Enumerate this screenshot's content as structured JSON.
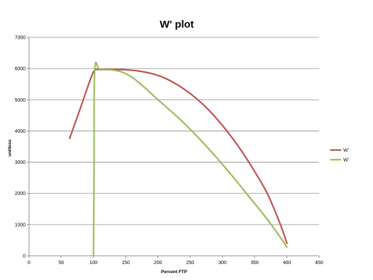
{
  "chart_data": {
    "type": "line",
    "title": "W' plot",
    "xlabel": "Percent FTP",
    "ylabel": "unitless",
    "xlim": [
      0,
      450
    ],
    "ylim": [
      0,
      7000
    ],
    "x_ticks": [
      0,
      50,
      100,
      150,
      200,
      250,
      300,
      350,
      400,
      450
    ],
    "y_ticks": [
      0,
      1000,
      2000,
      3000,
      4000,
      5000,
      6000,
      7000
    ],
    "grid": "horizontal",
    "legend_position": "right",
    "series": [
      {
        "name": "W'",
        "color": "#c0504d",
        "points": [
          [
            63,
            3760
          ],
          [
            80,
            4750
          ],
          [
            95,
            5640
          ],
          [
            102,
            5950
          ],
          [
            110,
            5965
          ],
          [
            130,
            5970
          ],
          [
            150,
            5960
          ],
          [
            170,
            5920
          ],
          [
            190,
            5840
          ],
          [
            210,
            5700
          ],
          [
            230,
            5480
          ],
          [
            250,
            5200
          ],
          [
            270,
            4850
          ],
          [
            290,
            4420
          ],
          [
            310,
            3920
          ],
          [
            330,
            3350
          ],
          [
            350,
            2700
          ],
          [
            370,
            1980
          ],
          [
            390,
            1000
          ],
          [
            400,
            400
          ]
        ]
      },
      {
        "name": "W'",
        "color": "#9bbb59",
        "points": [
          [
            100,
            0
          ],
          [
            101,
            3000
          ],
          [
            102,
            5960
          ],
          [
            110,
            5965
          ],
          [
            130,
            5950
          ],
          [
            145,
            5880
          ],
          [
            160,
            5720
          ],
          [
            180,
            5380
          ],
          [
            200,
            5000
          ],
          [
            220,
            4640
          ],
          [
            240,
            4260
          ],
          [
            260,
            3840
          ],
          [
            280,
            3400
          ],
          [
            300,
            2930
          ],
          [
            320,
            2440
          ],
          [
            340,
            1930
          ],
          [
            360,
            1420
          ],
          [
            380,
            880
          ],
          [
            400,
            280
          ]
        ]
      }
    ]
  }
}
